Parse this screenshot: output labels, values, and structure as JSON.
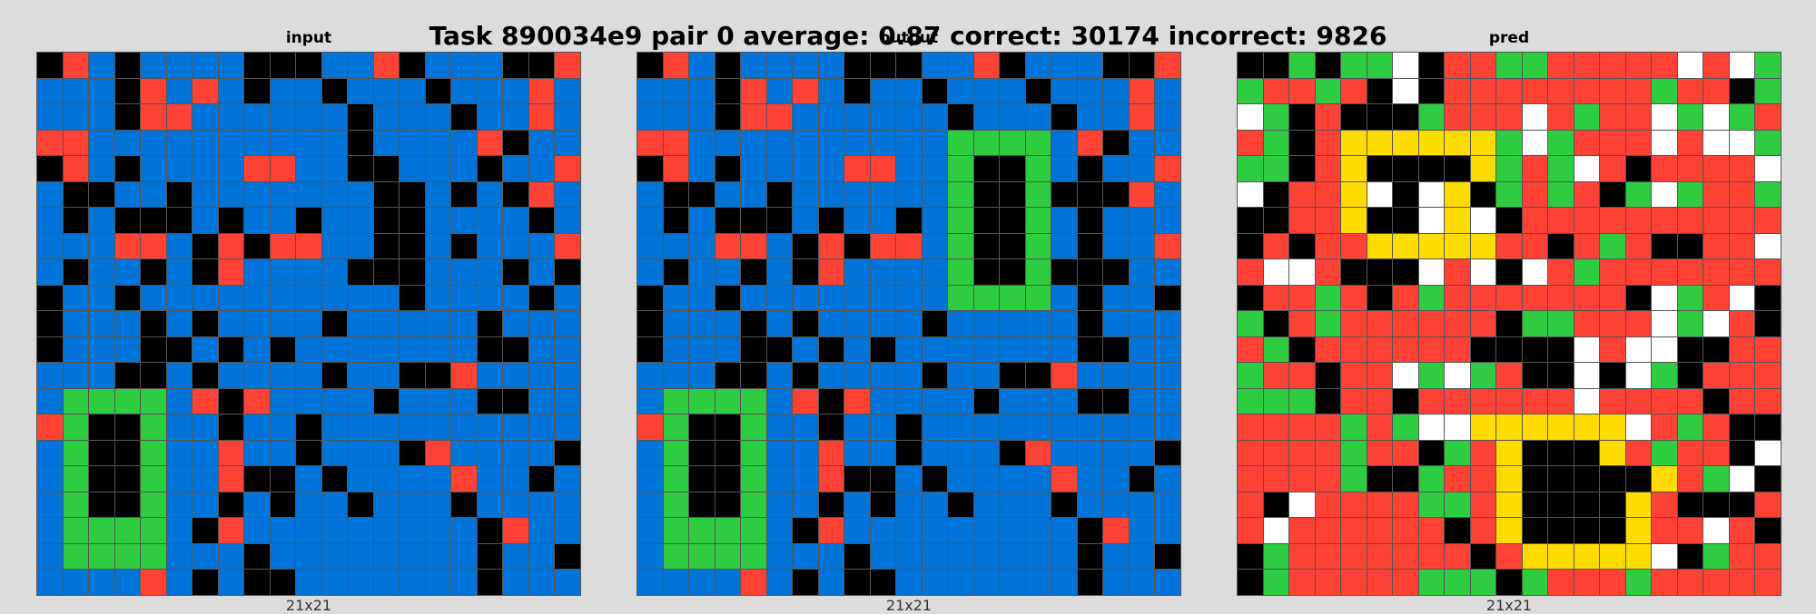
{
  "title": "Task 890034e9 pair 0 average: 0.87 correct: 30174 incorrect: 9826",
  "colors": {
    "0": "#000000",
    "1": "#0074D9",
    "2": "#FF4136",
    "3": "#2ECC40",
    "4": "#FFDC00",
    "5": "#AAAAAA",
    "6": "#F012BE",
    "7": "#FF851B",
    "8": "#7FDBFF",
    "9": "#870C25",
    "W": "#FFFFFF"
  },
  "panels": [
    {
      "label": "input",
      "size": "21x21",
      "rows": [
        "021011110001120111002",
        "111021210110111011121",
        "111022111111011101121",
        "221111111111011112011",
        "021011112211001110112",
        "100110111111100101021",
        "101000101101100111101",
        "111221020221100101112",
        "101101021111000111010",
        "011011111111110111101",
        "011101011110111110111",
        "011100101011111110011",
        "111001011110110021111",
        "133331202111101110011",
        "230031101101111111111",
        "130031121101110211110",
        "130031120010111121101",
        "130031101011011101111",
        "133331021111111110211",
        "133331110111111110110",
        "111121010011111110111"
      ]
    },
    {
      "label": "output",
      "size": "21x21",
      "rows": [
        "021011110001120111002",
        "111021210110111011121",
        "111022111111011101121",
        "221111111111333312011",
        "021011112211300310112",
        "100110111111300300021",
        "101000101101300310111",
        "111221020221300310112",
        "101101021111300300011",
        "011011111111333310110",
        "011101011110111110111",
        "011100101011111110011",
        "111001011110110021111",
        "133331202111101110011",
        "230031101101111111111",
        "130031121101110211110",
        "130031120010111121101",
        "130031101011011101111",
        "133331021111111110211",
        "133331110111111110110",
        "111121010011111110111"
      ]
    },
    {
      "label": "pred",
      "size": "21x21",
      "rows": [
        "003033W0223322222W2W3",
        "322320W02222222232203",
        "W3020003222W2322W3W32",
        "23024444443W3222W2WW3",
        "3302400004323W202222W",
        "W0224W0W40323203W3223",
        "0022400W4W02222222222",
        "02022444442202320022W",
        "2WW2000W2W0W232222222",
        "0223202322222220W32W0",
        "3023222222033222W3W20",
        "2302222220000W2WW0022",
        "322022W3W3200W0W30222",
        "3330220222222W2222022",
        "2222323WW444444W23200",
        "22223220324000423220W",
        "2222300322400000423W0",
        "20W222233240000420002",
        "2W2222220240000422W20",
        "0322222220244444W0322",
        "032222233303222322222"
      ]
    }
  ]
}
